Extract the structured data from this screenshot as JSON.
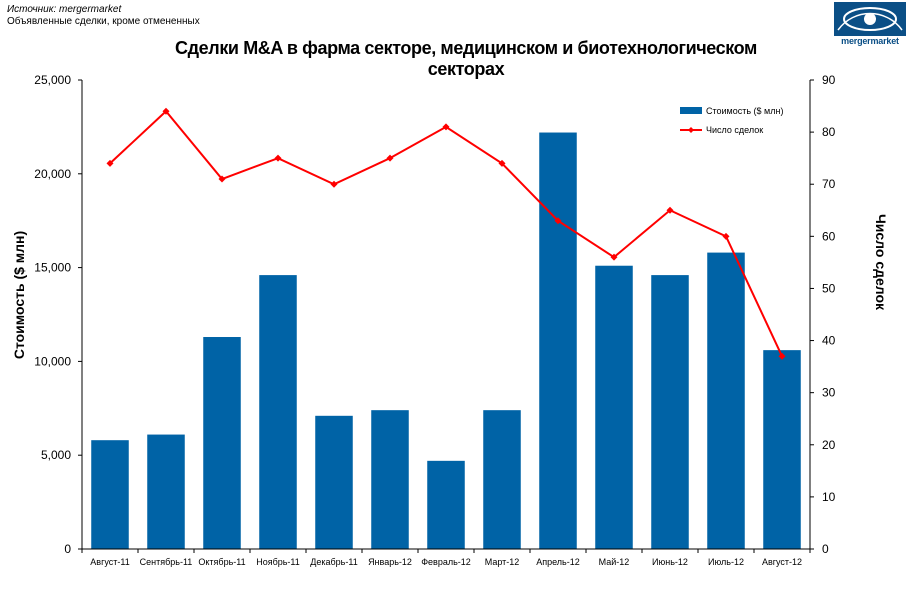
{
  "source": {
    "line1": "Источник: mergermarket",
    "line2": "Объявленные сделки, кроме отмененных"
  },
  "logo": {
    "name": "mergermarket-logo",
    "text": "mergermarket",
    "color": "#0b4f86"
  },
  "chart_data": {
    "type": "bar",
    "title": "Сделки M&A в фарма секторе, медицинском и биотехнологическом секторах",
    "title_lines": [
      "Сделки M&A в фарма секторе, медицинском и биотехнологическом",
      "секторах"
    ],
    "categories": [
      "Август-11",
      "Сентябрь-11",
      "Октябрь-11",
      "Ноябрь-11",
      "Декабрь-11",
      "Январь-12",
      "Февраль-12",
      "Март-12",
      "Апрель-12",
      "Май-12",
      "Июнь-12",
      "Июль-12",
      "Август-12"
    ],
    "series": [
      {
        "name": "Стоимость ($ млн)",
        "type": "bar",
        "axis": "left",
        "color": "#0063a6",
        "values": [
          5800,
          6100,
          11300,
          14600,
          7100,
          7400,
          4700,
          7400,
          22200,
          15100,
          14600,
          15800,
          10600
        ]
      },
      {
        "name": "Число сделок",
        "type": "line",
        "axis": "right",
        "color": "#ff0000",
        "values": [
          74,
          84,
          71,
          75,
          70,
          75,
          81,
          74,
          63,
          56,
          65,
          60,
          37
        ]
      }
    ],
    "ylabel": "Стоимость ($ млн)",
    "y2label": "Число сделок",
    "ylim": [
      0,
      25000
    ],
    "y2lim": [
      0,
      90
    ],
    "yticks": [
      "0",
      "5,000",
      "10,000",
      "15,000",
      "20,000",
      "25,000"
    ],
    "y2ticks": [
      "0",
      "10",
      "20",
      "30",
      "40",
      "50",
      "60",
      "70",
      "80",
      "90"
    ],
    "grid": false,
    "legend_position": "top-right"
  }
}
